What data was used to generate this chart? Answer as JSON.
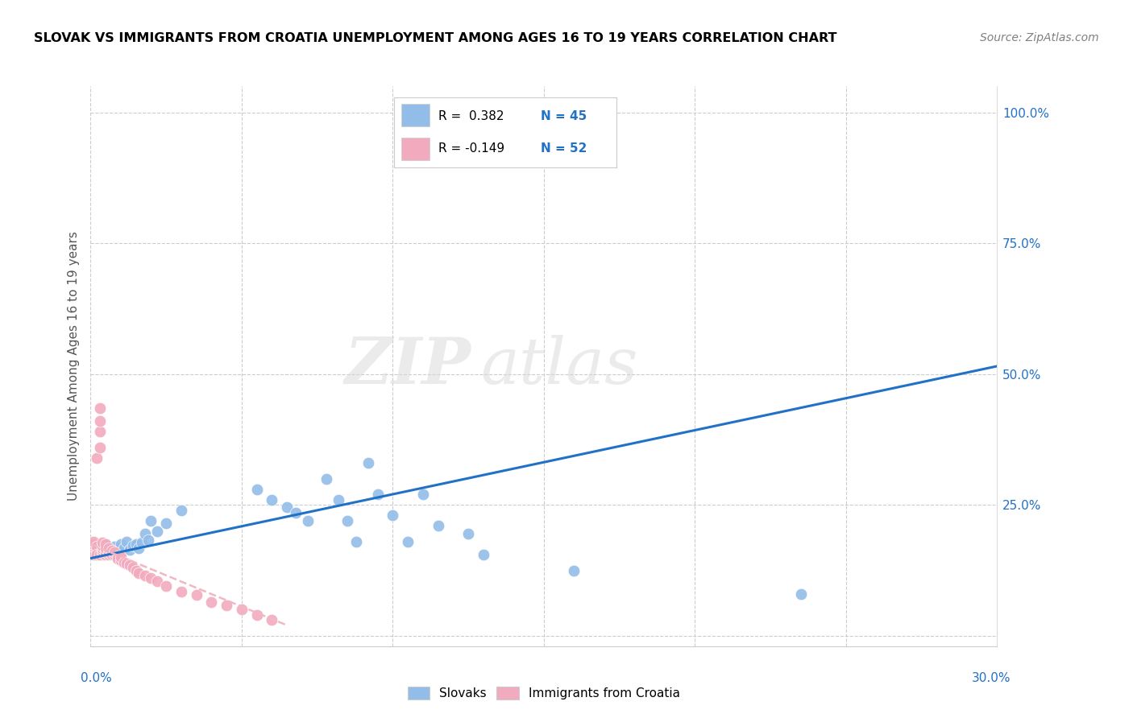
{
  "title": "SLOVAK VS IMMIGRANTS FROM CROATIA UNEMPLOYMENT AMONG AGES 16 TO 19 YEARS CORRELATION CHART",
  "source": "Source: ZipAtlas.com",
  "ylabel": "Unemployment Among Ages 16 to 19 years",
  "xlim": [
    0.0,
    0.3
  ],
  "ylim": [
    -0.02,
    1.05
  ],
  "yticks": [
    0.0,
    0.25,
    0.5,
    0.75,
    1.0
  ],
  "ytick_labels": [
    "",
    "25.0%",
    "50.0%",
    "75.0%",
    "100.0%"
  ],
  "blue_color": "#92BDE8",
  "pink_color": "#F2ABBE",
  "blue_line_color": "#2171C7",
  "pink_line_color": "#F0B8C4",
  "background_color": "#FFFFFF",
  "watermark_zip": "ZIP",
  "watermark_atlas": "atlas",
  "blue_scatter_x": [
    0.001,
    0.002,
    0.002,
    0.003,
    0.004,
    0.005,
    0.005,
    0.006,
    0.007,
    0.008,
    0.009,
    0.01,
    0.01,
    0.011,
    0.012,
    0.013,
    0.014,
    0.015,
    0.016,
    0.017,
    0.018,
    0.019,
    0.02,
    0.022,
    0.025,
    0.03,
    0.055,
    0.06,
    0.065,
    0.068,
    0.072,
    0.078,
    0.082,
    0.085,
    0.088,
    0.092,
    0.095,
    0.1,
    0.105,
    0.11,
    0.115,
    0.125,
    0.13,
    0.16,
    0.235
  ],
  "blue_scatter_y": [
    0.155,
    0.16,
    0.17,
    0.165,
    0.155,
    0.16,
    0.175,
    0.158,
    0.163,
    0.17,
    0.158,
    0.162,
    0.175,
    0.168,
    0.18,
    0.165,
    0.172,
    0.175,
    0.168,
    0.178,
    0.195,
    0.182,
    0.22,
    0.2,
    0.215,
    0.24,
    0.28,
    0.26,
    0.245,
    0.235,
    0.22,
    0.3,
    0.26,
    0.22,
    0.18,
    0.33,
    0.27,
    0.23,
    0.18,
    0.27,
    0.21,
    0.195,
    0.155,
    0.125,
    0.08
  ],
  "pink_scatter_x": [
    0.001,
    0.001,
    0.001,
    0.001,
    0.001,
    0.002,
    0.002,
    0.002,
    0.002,
    0.003,
    0.003,
    0.003,
    0.003,
    0.003,
    0.004,
    0.004,
    0.004,
    0.004,
    0.004,
    0.004,
    0.005,
    0.005,
    0.005,
    0.005,
    0.006,
    0.006,
    0.006,
    0.007,
    0.007,
    0.008,
    0.008,
    0.009,
    0.009,
    0.01,
    0.01,
    0.011,
    0.012,
    0.013,
    0.014,
    0.015,
    0.016,
    0.018,
    0.02,
    0.022,
    0.025,
    0.03,
    0.035,
    0.04,
    0.045,
    0.05,
    0.055,
    0.06
  ],
  "pink_scatter_y": [
    0.155,
    0.16,
    0.17,
    0.175,
    0.18,
    0.165,
    0.17,
    0.155,
    0.34,
    0.36,
    0.39,
    0.41,
    0.435,
    0.155,
    0.165,
    0.158,
    0.162,
    0.168,
    0.172,
    0.178,
    0.155,
    0.16,
    0.168,
    0.175,
    0.155,
    0.16,
    0.168,
    0.155,
    0.162,
    0.155,
    0.16,
    0.152,
    0.148,
    0.145,
    0.15,
    0.14,
    0.138,
    0.135,
    0.13,
    0.125,
    0.12,
    0.115,
    0.11,
    0.105,
    0.095,
    0.085,
    0.078,
    0.065,
    0.058,
    0.05,
    0.04,
    0.03
  ],
  "blue_line_x0": 0.0,
  "blue_line_y0": 0.148,
  "blue_line_x1": 0.3,
  "blue_line_y1": 0.515,
  "pink_line_x0": 0.0,
  "pink_line_y0": 0.175,
  "pink_line_x1": 0.065,
  "pink_line_y1": 0.02
}
